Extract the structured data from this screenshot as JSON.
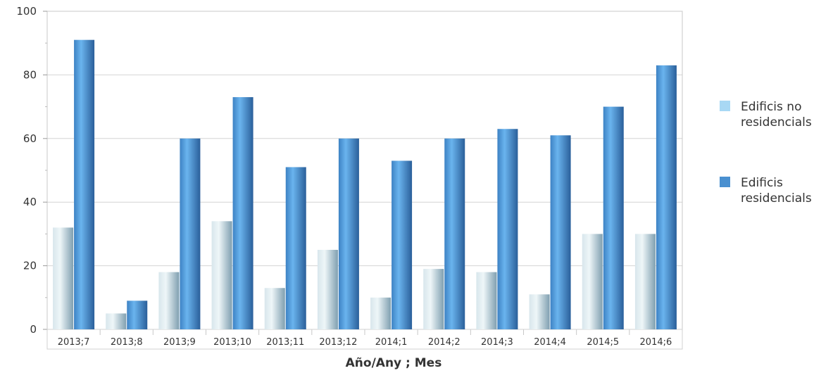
{
  "chart_data": {
    "type": "bar",
    "title": "",
    "xlabel": "Año/Any ; Mes",
    "ylabel": "",
    "ylim": [
      0,
      100
    ],
    "yticks": [
      0,
      20,
      40,
      60,
      80,
      100
    ],
    "grid": true,
    "legend_position": "right",
    "categories": [
      "2013;7",
      "2013;8",
      "2013;9",
      "2013;10",
      "2013;11",
      "2013;12",
      "2014;1",
      "2014;2",
      "2014;3",
      "2014;4",
      "2014;5",
      "2014;6"
    ],
    "series": [
      {
        "name": "Edificis no residencials",
        "legend_lines": [
          "Edificis no",
          "residencials"
        ],
        "color": "#a8cfe0",
        "values": [
          32,
          5,
          18,
          34,
          13,
          25,
          10,
          19,
          18,
          11,
          30,
          30
        ]
      },
      {
        "name": "Edificis residencials",
        "legend_lines": [
          "Edificis",
          "residencials"
        ],
        "color": "#4a90d0",
        "values": [
          91,
          9,
          60,
          73,
          51,
          60,
          53,
          60,
          63,
          61,
          70,
          83
        ]
      }
    ]
  }
}
